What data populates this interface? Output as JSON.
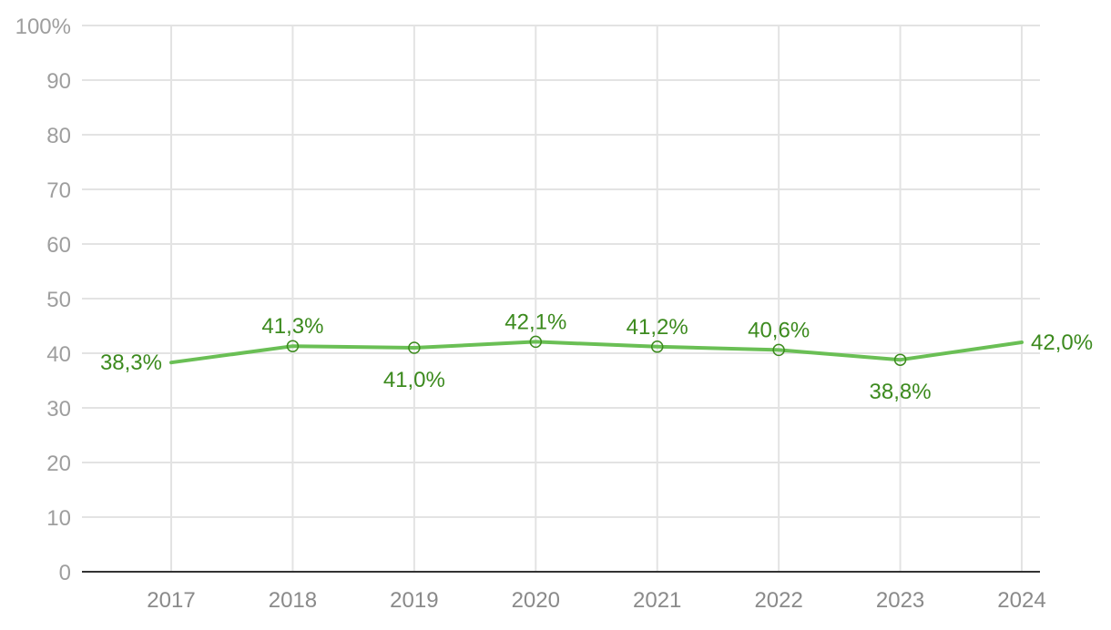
{
  "chart_data": {
    "type": "line",
    "title": "",
    "xlabel": "",
    "ylabel": "",
    "categories": [
      "2017",
      "2018",
      "2019",
      "2020",
      "2021",
      "2022",
      "2023",
      "2024"
    ],
    "series": [
      {
        "values": [
          38.3,
          41.3,
          41.0,
          42.1,
          41.2,
          40.6,
          38.8,
          42.0
        ],
        "labels": [
          "38,3%",
          "41,3%",
          "41,0%",
          "42,1%",
          "41,2%",
          "40,6%",
          "38,8%",
          "42,0%"
        ],
        "color": "#6abf55",
        "label_color": "#3c8a1e"
      }
    ],
    "ylim": [
      0,
      100
    ],
    "yticks": [
      0,
      10,
      20,
      30,
      40,
      50,
      60,
      70,
      80,
      90,
      100
    ],
    "ytick_labels": [
      "0",
      "10",
      "20",
      "30",
      "40",
      "50",
      "60",
      "70",
      "80",
      "90",
      "100%"
    ],
    "grid": true,
    "legend": "none"
  }
}
